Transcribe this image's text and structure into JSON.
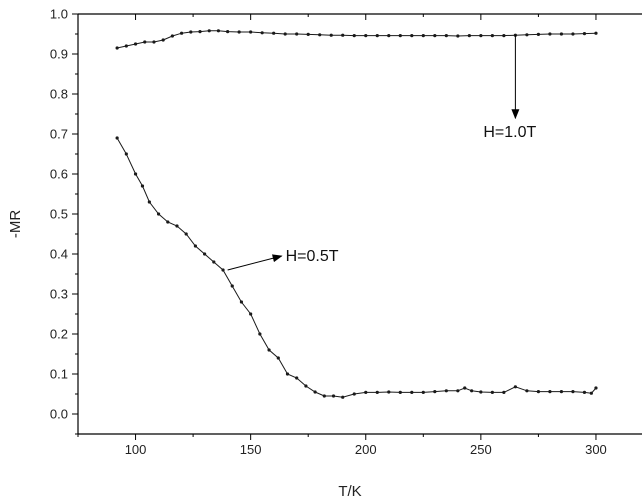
{
  "chart_data": {
    "type": "line",
    "xlabel": "T/K",
    "ylabel": "-MR",
    "xlim": [
      75,
      320
    ],
    "ylim": [
      -0.05,
      1.0
    ],
    "xticks": [
      100,
      150,
      200,
      250,
      300
    ],
    "yticks": [
      0.0,
      0.1,
      0.2,
      0.3,
      0.4,
      0.5,
      0.6,
      0.7,
      0.8,
      0.9,
      1.0
    ],
    "grid": false,
    "series": [
      {
        "name": "H=1.0T",
        "x": [
          92,
          96,
          100,
          104,
          108,
          112,
          116,
          120,
          124,
          128,
          132,
          136,
          140,
          145,
          150,
          155,
          160,
          165,
          170,
          175,
          180,
          185,
          190,
          195,
          200,
          205,
          210,
          215,
          220,
          225,
          230,
          235,
          240,
          245,
          250,
          255,
          260,
          265,
          270,
          275,
          280,
          285,
          290,
          295,
          300
        ],
        "values": [
          0.915,
          0.92,
          0.925,
          0.93,
          0.93,
          0.935,
          0.945,
          0.952,
          0.955,
          0.956,
          0.958,
          0.958,
          0.956,
          0.955,
          0.955,
          0.953,
          0.952,
          0.95,
          0.95,
          0.949,
          0.948,
          0.947,
          0.947,
          0.946,
          0.946,
          0.946,
          0.946,
          0.946,
          0.946,
          0.946,
          0.946,
          0.946,
          0.945,
          0.946,
          0.946,
          0.946,
          0.946,
          0.947,
          0.948,
          0.949,
          0.95,
          0.95,
          0.95,
          0.951,
          0.952
        ]
      },
      {
        "name": "H=0.5T",
        "x": [
          92,
          96,
          100,
          103,
          106,
          110,
          114,
          118,
          122,
          126,
          130,
          134,
          138,
          142,
          146,
          150,
          154,
          158,
          162,
          166,
          170,
          174,
          178,
          182,
          186,
          190,
          195,
          200,
          205,
          210,
          215,
          220,
          225,
          230,
          235,
          240,
          243,
          246,
          250,
          255,
          260,
          265,
          270,
          275,
          280,
          285,
          290,
          295,
          298,
          300
        ],
        "values": [
          0.69,
          0.65,
          0.6,
          0.57,
          0.53,
          0.5,
          0.48,
          0.47,
          0.45,
          0.42,
          0.4,
          0.38,
          0.36,
          0.32,
          0.28,
          0.25,
          0.2,
          0.16,
          0.14,
          0.1,
          0.09,
          0.07,
          0.055,
          0.045,
          0.045,
          0.042,
          0.05,
          0.054,
          0.054,
          0.055,
          0.054,
          0.054,
          0.054,
          0.056,
          0.058,
          0.058,
          0.065,
          0.058,
          0.055,
          0.054,
          0.054,
          0.068,
          0.058,
          0.056,
          0.056,
          0.056,
          0.056,
          0.054,
          0.052,
          0.065
        ]
      }
    ],
    "annotations": [
      {
        "text": "H=1.0T",
        "series": "H=1.0T",
        "point": [
          265,
          0.947
        ],
        "arrow": "down"
      },
      {
        "text": "H=0.5T",
        "series": "H=0.5T",
        "point": [
          140,
          0.36
        ],
        "arrow": "right"
      }
    ]
  },
  "colors": {
    "line": "#1a1a1a",
    "axis": "#000000",
    "background": "#ffffff"
  }
}
